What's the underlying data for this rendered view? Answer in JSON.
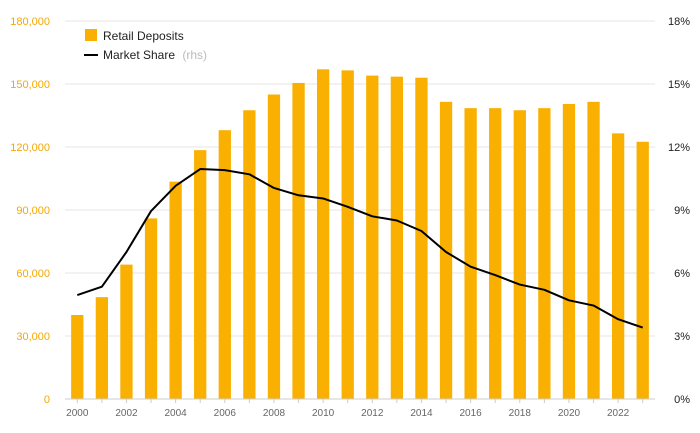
{
  "colors": {
    "bar": "#F9B000",
    "line": "#000000",
    "left_axis_text": "#F5A800",
    "right_axis_text": "#222222",
    "grid": "#E6E6E6"
  },
  "chart_data": {
    "type": "bar",
    "categories": [
      "2000",
      "2001",
      "2002",
      "2003",
      "2004",
      "2005",
      "2006",
      "2007",
      "2008",
      "2009",
      "2010",
      "2011",
      "2012",
      "2013",
      "2014",
      "2015",
      "2016",
      "2017",
      "2018",
      "2019",
      "2020",
      "2021",
      "2022",
      "2023"
    ],
    "x_tick_labels": [
      "2000",
      "2002",
      "2004",
      "2006",
      "2008",
      "2010",
      "2012",
      "2014",
      "2016",
      "2018",
      "2020",
      "2022"
    ],
    "series": [
      {
        "name": "Retail Deposits",
        "axis": "left",
        "type": "bar",
        "values": [
          40000,
          48500,
          64000,
          86000,
          103500,
          118500,
          128000,
          137500,
          145000,
          150500,
          157000,
          156500,
          154000,
          153500,
          153000,
          141500,
          138500,
          138500,
          137500,
          138500,
          140500,
          141500,
          126500,
          122500
        ]
      },
      {
        "name": "Market Share",
        "axis": "right",
        "type": "line",
        "values": [
          4.95,
          5.35,
          7.0,
          8.95,
          10.15,
          10.95,
          10.9,
          10.7,
          10.05,
          9.7,
          9.55,
          9.15,
          8.7,
          8.5,
          8.0,
          7.0,
          6.3,
          5.9,
          5.45,
          5.2,
          4.7,
          4.45,
          3.8,
          3.4
        ]
      }
    ],
    "left_axis": {
      "ylim": [
        0,
        180000
      ],
      "ticks": [
        0,
        30000,
        60000,
        90000,
        120000,
        150000,
        180000
      ],
      "tick_labels": [
        "0",
        "30,000",
        "60,000",
        "90,000",
        "120,000",
        "150,000",
        "180,000"
      ]
    },
    "right_axis": {
      "ylim": [
        0,
        18
      ],
      "ticks": [
        0,
        3,
        6,
        9,
        12,
        15,
        18
      ],
      "tick_labels": [
        "0%",
        "3%",
        "6%",
        "9%",
        "12%",
        "15%",
        "18%"
      ]
    },
    "legend": {
      "position": "top-left",
      "bar_label": "Retail Deposits",
      "line_label": "Market Share",
      "line_hint": "(rhs)"
    },
    "grid": true,
    "title": ""
  }
}
